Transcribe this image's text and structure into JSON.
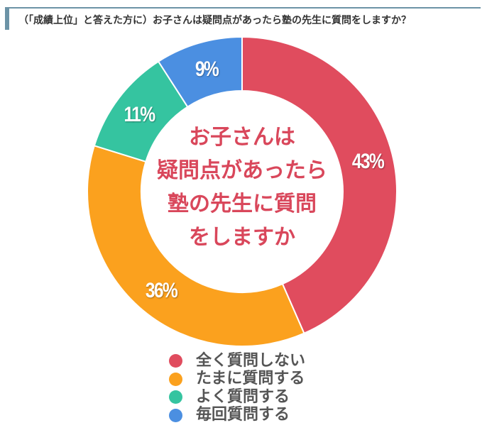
{
  "heading": {
    "title": "（「成績上位」と答えた方に）お子さんは疑問点があったら塾の先生に質問をしますか？"
  },
  "chart_data": {
    "type": "pie",
    "subtype": "donut",
    "title": "（「成績上位」と答えた方に）お子さんは疑問点があったら塾の先生に質問をしますか？",
    "center_label": [
      "お子さんは",
      "疑問点があったら",
      "塾の先生に質問",
      "をしますか"
    ],
    "categories": [
      "全く質問しない",
      "たまに質問する",
      "よく質問する",
      "毎回質問する"
    ],
    "values": [
      43,
      36,
      11,
      9
    ],
    "unit": "%",
    "value_labels": [
      "43%",
      "36%",
      "11%",
      "9%"
    ],
    "colors": [
      "#e04c5e",
      "#fba11e",
      "#35c4a0",
      "#4b8fe1"
    ],
    "start_angle": "12 o'clock",
    "direction": "clockwise",
    "legend_position": "bottom"
  },
  "center": {
    "lines": [
      "お子さんは",
      "疑問点があったら",
      "塾の先生に質問",
      "をしますか"
    ]
  },
  "slices": [
    {
      "label": "43%",
      "color": "#e04c5e"
    },
    {
      "label": "36%",
      "color": "#fba11e"
    },
    {
      "label": "11%",
      "color": "#35c4a0"
    },
    {
      "label": "9%",
      "color": "#4b8fe1"
    }
  ],
  "legend": {
    "items": [
      {
        "label": "全く質問しない",
        "color": "#e04c5e"
      },
      {
        "label": "たまに質問する",
        "color": "#fba11e"
      },
      {
        "label": "よく質問する",
        "color": "#35c4a0"
      },
      {
        "label": "毎回質問する",
        "color": "#4b8fe1"
      }
    ]
  }
}
